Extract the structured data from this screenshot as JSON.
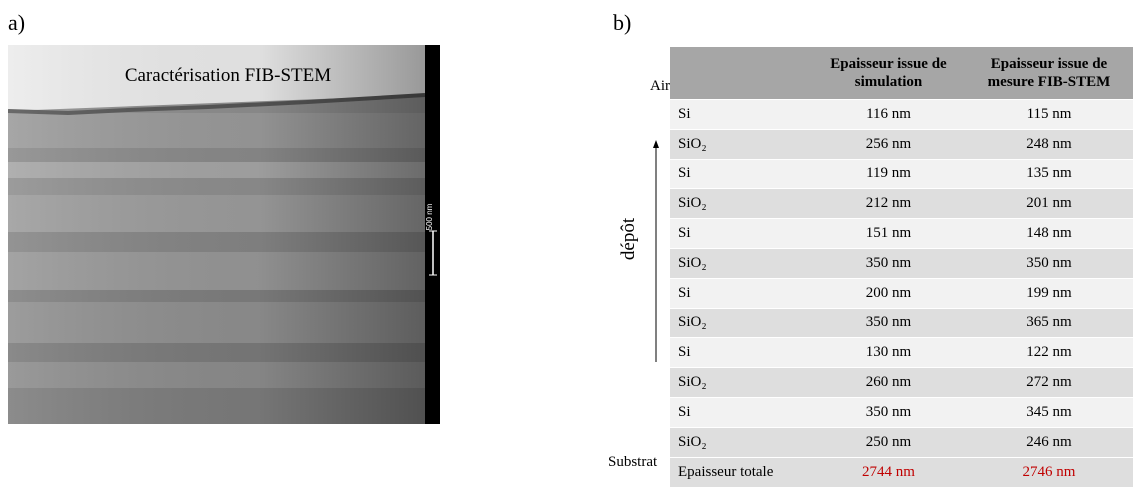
{
  "panel_a": {
    "label": "a)",
    "caption": "Caractérisation FIB-STEM",
    "scale_bar": "500 nm"
  },
  "panel_b": {
    "label": "b)",
    "air": "Air",
    "substrate": "Substrat",
    "arrow_label": "dépôt",
    "table": {
      "header": [
        "Epaisseur  issue de simulation",
        "Epaisseur issue de mesure FIB-STEM"
      ],
      "rows": [
        [
          "Si",
          "116 nm",
          "115 nm"
        ],
        [
          "SiO₂",
          "256 nm",
          "248 nm"
        ],
        [
          "Si",
          "119 nm",
          "135 nm"
        ],
        [
          "SiO₂",
          "212 nm",
          "201 nm"
        ],
        [
          "Si",
          "151 nm",
          "148 nm"
        ],
        [
          "SiO₂",
          "350 nm",
          "350 nm"
        ],
        [
          "Si",
          "200 nm",
          "199 nm"
        ],
        [
          "SiO₂",
          "350 nm",
          "365 nm"
        ],
        [
          "Si",
          "130 nm",
          "122 nm"
        ],
        [
          "SiO₂",
          "260 nm",
          "272 nm"
        ],
        [
          "Si",
          "350 nm",
          "345 nm"
        ],
        [
          "SiO₂",
          "250 nm",
          "246 nm"
        ],
        [
          "Epaisseur totale",
          "2744 nm",
          "2746 nm"
        ]
      ]
    }
  }
}
